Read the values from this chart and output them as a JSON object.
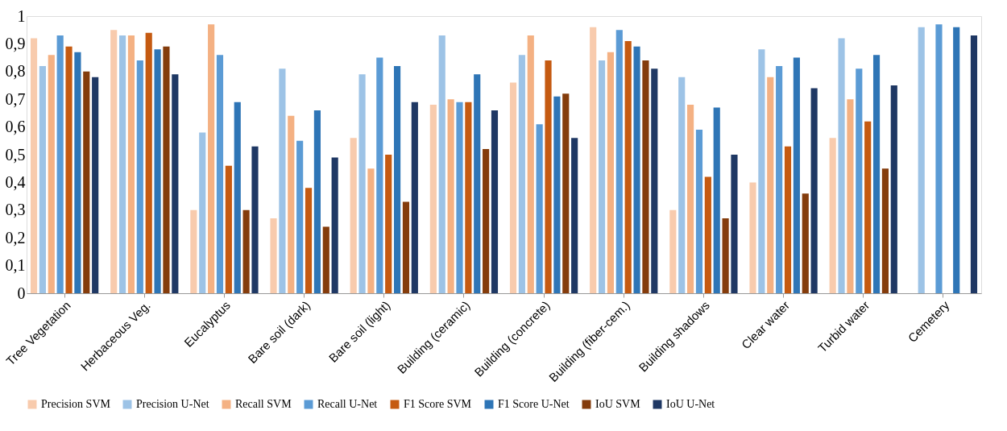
{
  "chart_data": {
    "type": "bar",
    "categories": [
      "Tree Vegetation",
      "Herbaceous Veg.",
      "Eucalyptus",
      "Bare soil (dark)",
      "Bare soil (light)",
      "Building (ceramic)",
      "Building (concrete)",
      "Building (fiber-cem.)",
      "Building shadows",
      "Clear water",
      "Turbid water",
      "Cemetery"
    ],
    "series": [
      {
        "name": "Precision SVM",
        "color": "#f8cbad",
        "values": [
          0.92,
          0.95,
          0.3,
          0.27,
          0.56,
          0.68,
          0.76,
          0.96,
          0.3,
          0.4,
          0.56,
          null
        ]
      },
      {
        "name": "Precision U-Net",
        "color": "#9dc3e6",
        "values": [
          0.82,
          0.93,
          0.58,
          0.81,
          0.79,
          0.93,
          0.86,
          0.84,
          0.78,
          0.88,
          0.92,
          0.96
        ]
      },
      {
        "name": "Recall SVM",
        "color": "#f4b183",
        "values": [
          0.86,
          0.93,
          0.97,
          0.64,
          0.45,
          0.7,
          0.93,
          0.87,
          0.68,
          0.78,
          0.7,
          null
        ]
      },
      {
        "name": "Recall U-Net",
        "color": "#5b9bd5",
        "values": [
          0.93,
          0.84,
          0.86,
          0.55,
          0.85,
          0.69,
          0.61,
          0.95,
          0.59,
          0.82,
          0.81,
          0.97
        ]
      },
      {
        "name": "F1 Score SVM",
        "color": "#c55a11",
        "values": [
          0.89,
          0.94,
          0.46,
          0.38,
          0.5,
          0.69,
          0.84,
          0.91,
          0.42,
          0.53,
          0.62,
          null
        ]
      },
      {
        "name": "F1 Score U-Net",
        "color": "#2e75b6",
        "values": [
          0.87,
          0.88,
          0.69,
          0.66,
          0.82,
          0.79,
          0.71,
          0.89,
          0.67,
          0.85,
          0.86,
          0.96
        ]
      },
      {
        "name": "IoU SVM",
        "color": "#843c0c",
        "values": [
          0.8,
          0.89,
          0.3,
          0.24,
          0.33,
          0.52,
          0.72,
          0.84,
          0.27,
          0.36,
          0.45,
          null
        ]
      },
      {
        "name": "IoU U-Net",
        "color": "#1f3864",
        "values": [
          0.78,
          0.79,
          0.53,
          0.49,
          0.69,
          0.66,
          0.56,
          0.81,
          0.5,
          0.74,
          0.75,
          0.93
        ]
      }
    ],
    "ylim": [
      0,
      1
    ],
    "yticks": [
      0,
      {
        "value": 0.1,
        "label": "0,1"
      },
      {
        "value": 0.2,
        "label": "0,2"
      },
      {
        "value": 0.3,
        "label": "0,3"
      },
      {
        "value": 0.4,
        "label": "0,4"
      },
      {
        "value": 0.5,
        "label": "0,5"
      },
      {
        "value": 0.6,
        "label": "0,6"
      },
      {
        "value": 0.7,
        "label": "0,7"
      },
      {
        "value": 0.8,
        "label": "0,8"
      },
      {
        "value": 0.9,
        "label": "0,9"
      },
      1
    ],
    "grid": false,
    "legend": "bottom"
  }
}
